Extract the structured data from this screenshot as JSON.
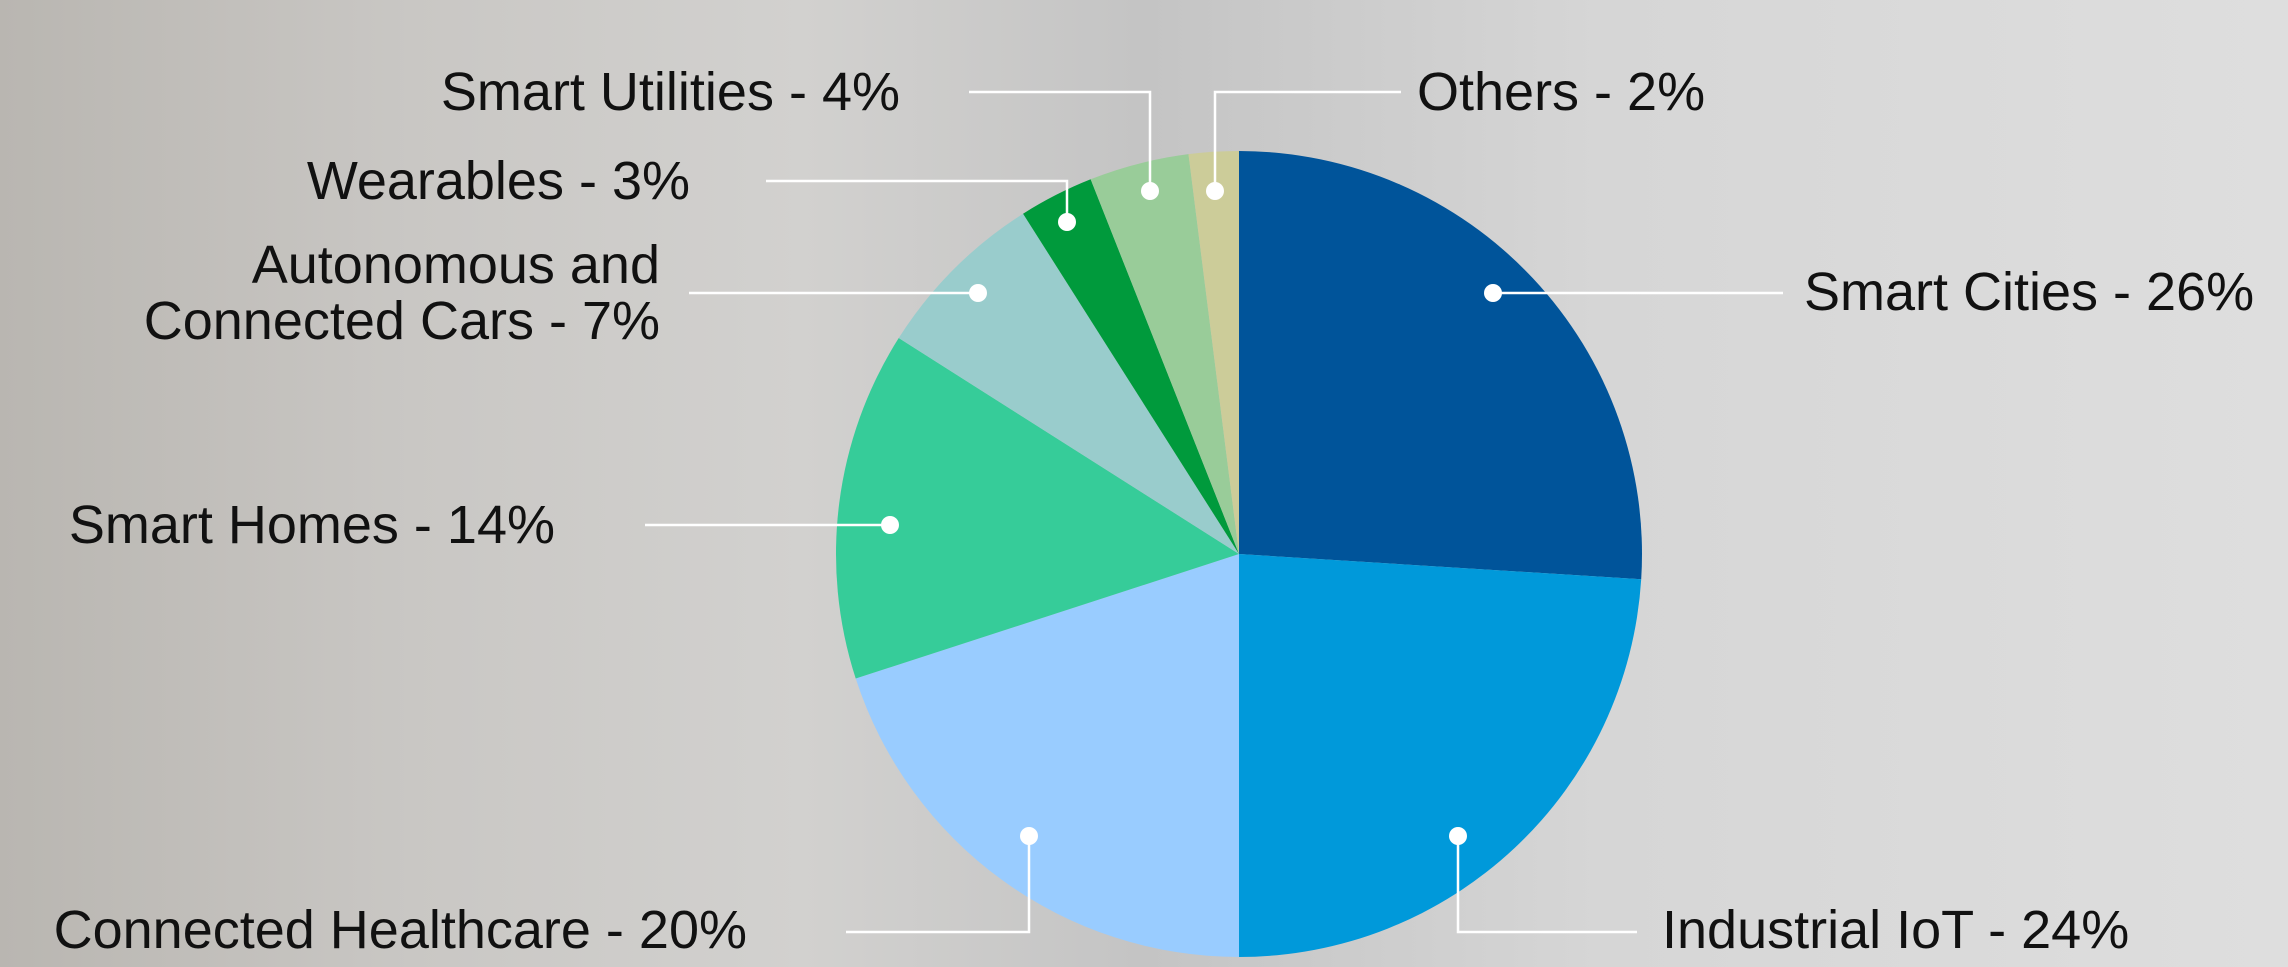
{
  "chart_data": {
    "type": "pie",
    "categories": [
      "Smart Cities - 26%",
      "Industrial IoT - 24%",
      "Connected Healthcare - 20%",
      "Smart Homes - 14%",
      "Autonomous and\nConnected Cars - 7%",
      "Wearables - 3%",
      "Smart Utilities - 4%",
      "Others - 2%"
    ],
    "values": [
      26,
      24,
      20,
      14,
      7,
      3,
      4,
      2
    ],
    "colors": [
      "#00549a",
      "#0099da",
      "#99ccff",
      "#36cc99",
      "#99cccc",
      "#009a3c",
      "#99cc99",
      "#cccc99"
    ]
  }
}
